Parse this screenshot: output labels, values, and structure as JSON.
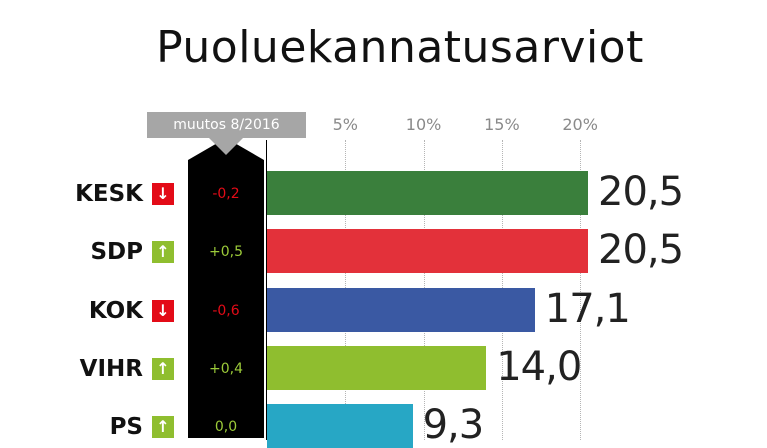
{
  "chart_data": {
    "type": "bar",
    "title": "Puoluekannatusarviot",
    "change_header": "muutos 8/2016",
    "xlim": [
      0,
      22
    ],
    "ticks": [
      {
        "value": 5,
        "label": "5%"
      },
      {
        "value": 10,
        "label": "10%"
      },
      {
        "value": 15,
        "label": "15%"
      },
      {
        "value": 20,
        "label": "20%"
      }
    ],
    "grid": true,
    "rows": [
      {
        "party": "KESK",
        "value": 20.5,
        "value_label": "20,5",
        "change": "-0,2",
        "direction": "down",
        "color": "#3a7f3c"
      },
      {
        "party": "SDP",
        "value": 20.5,
        "value_label": "20,5",
        "change": "+0,5",
        "direction": "up",
        "color": "#e3313a"
      },
      {
        "party": "KOK",
        "value": 17.1,
        "value_label": "17,1",
        "change": "-0,6",
        "direction": "down",
        "color": "#3a59a3"
      },
      {
        "party": "VIHR",
        "value": 14.0,
        "value_label": "14,0",
        "change": "+0,4",
        "direction": "up",
        "color": "#8fbe2f"
      },
      {
        "party": "PS",
        "value": 9.3,
        "value_label": "9,3",
        "change": "0,0",
        "direction": "up",
        "color": "#27a7c5"
      }
    ],
    "colors": {
      "up": "#8fbe2f",
      "down": "#e30b17",
      "change_up_text": "#9ccb39",
      "change_down_text": "#e30b17"
    }
  }
}
